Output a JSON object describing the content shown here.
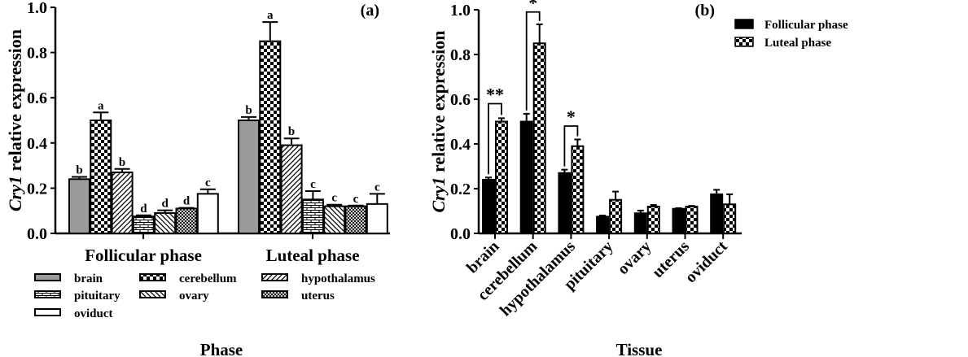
{
  "chart_data": [
    {
      "type": "bar",
      "panel_label": "(a)",
      "xlabel": "Phase",
      "ylabel_italic": "Cry1",
      "ylabel_rest": " relative expression",
      "ylim": [
        0,
        1.0
      ],
      "yticks": [
        "0.0",
        "0.2",
        "0.4",
        "0.6",
        "0.8",
        "1.0"
      ],
      "categories": [
        "Follicular phase",
        "Luteal phase"
      ],
      "series": [
        {
          "name": "brain",
          "pattern": "gray",
          "values": [
            0.24,
            0.5
          ],
          "errors": [
            0.01,
            0.015
          ],
          "letters": [
            "b",
            "b"
          ]
        },
        {
          "name": "cerebellum",
          "pattern": "checker",
          "values": [
            0.5,
            0.85
          ],
          "errors": [
            0.035,
            0.085
          ],
          "letters": [
            "a",
            "a"
          ]
        },
        {
          "name": "hypothalamus",
          "pattern": "diag-right",
          "values": [
            0.27,
            0.39
          ],
          "errors": [
            0.015,
            0.03
          ],
          "letters": [
            "b",
            "b"
          ]
        },
        {
          "name": "pituitary",
          "pattern": "brick",
          "values": [
            0.075,
            0.15
          ],
          "errors": [
            0.005,
            0.037
          ],
          "letters": [
            "d",
            "c"
          ]
        },
        {
          "name": "ovary",
          "pattern": "diag-left",
          "values": [
            0.09,
            0.12
          ],
          "errors": [
            0.012,
            0.007
          ],
          "letters": [
            "d",
            "c"
          ]
        },
        {
          "name": "uterus",
          "pattern": "crosshatch",
          "values": [
            0.11,
            0.12
          ],
          "errors": [
            0.003,
            0.003
          ],
          "letters": [
            "d",
            "c"
          ]
        },
        {
          "name": "oviduct",
          "pattern": "white",
          "values": [
            0.175,
            0.13
          ],
          "errors": [
            0.02,
            0.045
          ],
          "letters": [
            "c",
            "c"
          ]
        }
      ],
      "legend_placement": "bottom"
    },
    {
      "type": "bar",
      "panel_label": "(b)",
      "xlabel": "Tissue",
      "ylabel_italic": "Cry1",
      "ylabel_rest": " relative expression",
      "ylim": [
        0,
        1.0
      ],
      "yticks": [
        "0.0",
        "0.2",
        "0.4",
        "0.6",
        "0.8",
        "1.0"
      ],
      "categories": [
        "brain",
        "cerebellum",
        "hypothalamus",
        "pituitary",
        "ovary",
        "uterus",
        "oviduct"
      ],
      "series": [
        {
          "name": "Follicular phase",
          "pattern": "black",
          "values": [
            0.24,
            0.5,
            0.27,
            0.075,
            0.09,
            0.11,
            0.175
          ],
          "errors": [
            0.01,
            0.035,
            0.015,
            0.005,
            0.012,
            0.003,
            0.02
          ]
        },
        {
          "name": "Luteal phase",
          "pattern": "checker",
          "values": [
            0.5,
            0.85,
            0.39,
            0.15,
            0.12,
            0.12,
            0.13
          ],
          "errors": [
            0.015,
            0.085,
            0.03,
            0.037,
            0.007,
            0.003,
            0.045
          ]
        }
      ],
      "significance": [
        {
          "category": "brain",
          "mark": "**",
          "level": 0.58
        },
        {
          "category": "cerebellum",
          "mark": "*",
          "level": 0.99
        },
        {
          "category": "hypothalamus",
          "mark": "*",
          "level": 0.48
        }
      ],
      "legend_placement": "top-right"
    }
  ]
}
